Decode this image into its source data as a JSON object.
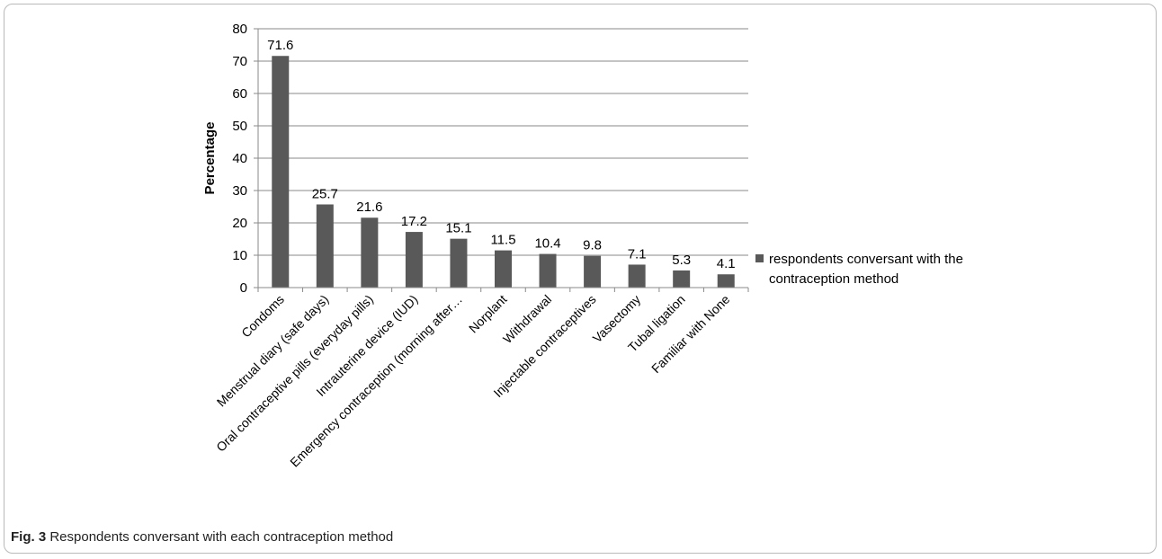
{
  "caption": {
    "label": "Fig. 3",
    "text": "Respondents conversant with each contraception method"
  },
  "chart_data": {
    "type": "bar",
    "title": "",
    "xlabel": "",
    "ylabel": "Percentage",
    "ylim": [
      0,
      80
    ],
    "yticks": [
      0,
      10,
      20,
      30,
      40,
      50,
      60,
      70,
      80
    ],
    "grid": true,
    "legend_position": "right",
    "bar_color": "#595959",
    "categories": [
      "Condoms",
      "Menstrual diary (safe days)",
      "Oral contraceptive pills (everyday pills)",
      "Intrauterine device (IUD)",
      "Emergency contraception (morning after…",
      "Norplant",
      "Withdrawal",
      "Injectable contraceptives",
      "Vasectomy",
      "Tubal ligation",
      "Familiar with None"
    ],
    "series": [
      {
        "name": "respondents conversant with the contraception method",
        "legend_lines": [
          "respondents conversant with the",
          "contraception method"
        ],
        "values": [
          71.6,
          25.7,
          21.6,
          17.2,
          15.1,
          11.5,
          10.4,
          9.8,
          7.1,
          5.3,
          4.1
        ],
        "labels": [
          "71.6",
          "25.7",
          "21.6",
          "17.2",
          "15.1",
          "11.5",
          "10.4",
          "9.8",
          "7.1",
          "5.3",
          "4.1"
        ]
      }
    ]
  }
}
